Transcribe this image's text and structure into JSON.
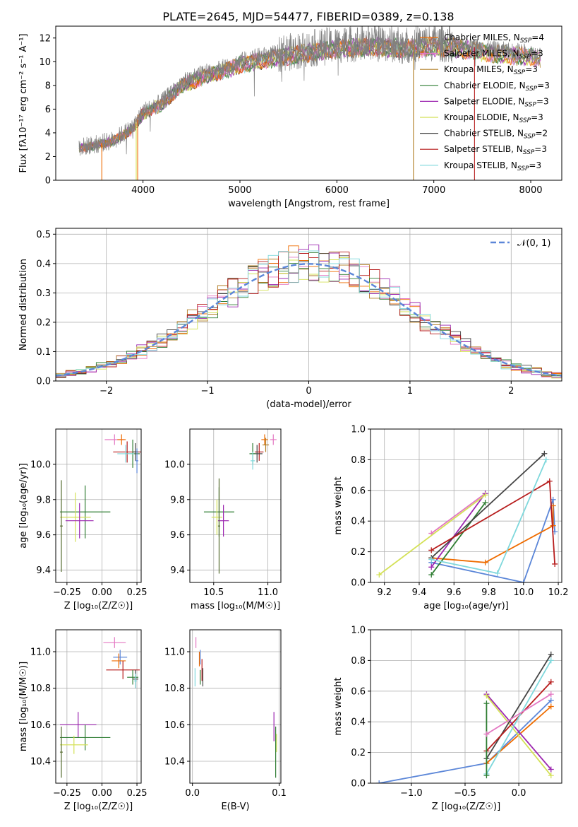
{
  "figure_title": "PLATE=2645, MJD=54477, FIBERID=0389, z=0.138",
  "legend": {
    "fit_labels": [
      {
        "lib": "Chabrier MILES",
        "n": "4",
        "color": "#ef6c00"
      },
      {
        "lib": "Salpeter MILES",
        "n": "3",
        "color": "#e377c2"
      },
      {
        "lib": "Kroupa MILES",
        "n": "3",
        "color": "#b07d24"
      },
      {
        "lib": "Chabrier ELODIE",
        "n": "3",
        "color": "#2e7d32"
      },
      {
        "lib": "Salpeter ELODIE",
        "n": "3",
        "color": "#9c27b0"
      },
      {
        "lib": "Kroupa ELODIE",
        "n": "3",
        "color": "#d4e157"
      },
      {
        "lib": "Chabrier STELIB",
        "n": "2",
        "color": "#444444"
      },
      {
        "lib": "Salpeter STELIB",
        "n": "3",
        "color": "#b71c1c"
      },
      {
        "lib": "Kroupa STELIB",
        "n": "3",
        "color": "#7fd8dc"
      }
    ],
    "nssp_prefix": "N",
    "nssp_sub": "SSP",
    "normal_label": "𝒩(0, 1)"
  },
  "chart_data": [
    {
      "id": "spectrum",
      "type": "line",
      "xlabel": "wavelength [Angstrom, rest frame]",
      "ylabel": "Flux [fλ10⁻¹⁷ erg cm⁻² s⁻¹ A⁻¹]",
      "xlim": [
        3100,
        8320
      ],
      "ylim": [
        0,
        13
      ],
      "xticks": [
        4000,
        5000,
        6000,
        7000,
        8000
      ],
      "yticks": [
        0,
        2,
        4,
        6,
        8,
        10,
        12
      ],
      "grid": false,
      "observed_color": "#808080",
      "observed_profile": {
        "x": [
          3340,
          3500,
          3700,
          3900,
          4000,
          4200,
          4400,
          4600,
          4800,
          5000,
          5200,
          5500,
          5800,
          6100,
          6400,
          6700,
          7000,
          7300,
          7600,
          7900,
          8100
        ],
        "y": [
          2.8,
          3.0,
          3.4,
          4.5,
          5.8,
          6.6,
          8.2,
          8.9,
          9.4,
          10.0,
          10.4,
          10.8,
          11.2,
          11.5,
          11.6,
          11.4,
          11.6,
          11.4,
          11.0,
          10.8,
          10.6
        ]
      }
    },
    {
      "id": "residual-histogram",
      "type": "bar",
      "xlabel": "(data-model)/error",
      "ylabel": "Normed distribution",
      "xlim": [
        -2.5,
        2.5
      ],
      "ylim": [
        0,
        0.52
      ],
      "xticks": [
        -2,
        -1,
        0,
        1,
        2
      ],
      "yticks": [
        0.0,
        0.1,
        0.2,
        0.3,
        0.4,
        0.5
      ],
      "grid": true,
      "legend_position": "top-right",
      "normal_curve_color": "#5b86d8",
      "bin_width": 0.1
    },
    {
      "id": "age-vs-metallicity",
      "type": "scatter",
      "xlabel": "Z [log₁₀(Z/Z☉)]",
      "ylabel": "age  [log₁₀(age/yr)]",
      "xlim": [
        -0.33,
        0.28
      ],
      "ylim": [
        9.33,
        10.2
      ],
      "xticks": [
        -0.25,
        0.0,
        0.25
      ],
      "yticks": [
        9.4,
        9.6,
        9.8,
        10.0
      ],
      "grid": true,
      "points": [
        {
          "color": "#e377c2",
          "x": 0.09,
          "y": 10.14,
          "xerr": 0.07,
          "yerr": 0.03
        },
        {
          "color": "#ef6c00",
          "x": 0.14,
          "y": 10.14,
          "xerr": 0.03,
          "yerr": 0.03
        },
        {
          "color": "#b71c1c",
          "x": 0.18,
          "y": 10.07,
          "xerr": 0.1,
          "yerr": 0.06
        },
        {
          "color": "#2e7d32",
          "x": 0.22,
          "y": 10.06,
          "xerr": 0.05,
          "yerr": 0.08
        },
        {
          "color": "#7fd8dc",
          "x": 0.17,
          "y": 10.06,
          "xerr": 0.06,
          "yerr": 0.05
        },
        {
          "color": "#444444",
          "x": 0.24,
          "y": 10.07,
          "xerr": 0.02,
          "yerr": 0.05
        },
        {
          "color": "#5b86d8",
          "x": 0.25,
          "y": 10.02,
          "xerr": 0.01,
          "yerr": 0.07
        },
        {
          "color": "#2e7d32",
          "x": -0.12,
          "y": 9.73,
          "xerr": 0.18,
          "yerr": 0.15
        },
        {
          "color": "#d4e157",
          "x": -0.19,
          "y": 9.7,
          "xerr": 0.11,
          "yerr": 0.14
        },
        {
          "color": "#9c27b0",
          "x": -0.16,
          "y": 9.68,
          "xerr": 0.1,
          "yerr": 0.1
        },
        {
          "color": "#556b2f",
          "x": -0.29,
          "y": 9.65,
          "xerr": 0.01,
          "yerr": 0.26
        }
      ]
    },
    {
      "id": "age-vs-mass",
      "type": "scatter",
      "xlabel": "mass [log₁₀(M/M☉)]",
      "ylabel": "",
      "xlim": [
        10.28,
        11.12
      ],
      "ylim": [
        9.33,
        10.2
      ],
      "xticks": [
        10.5,
        11.0
      ],
      "yticks": [
        9.4,
        9.6,
        9.8,
        10.0
      ],
      "grid": true,
      "points": [
        {
          "color": "#e377c2",
          "x": 11.05,
          "y": 10.14,
          "xerr": 0.03,
          "yerr": 0.03
        },
        {
          "color": "#ef6c00",
          "x": 10.97,
          "y": 10.14,
          "xerr": 0.03,
          "yerr": 0.03
        },
        {
          "color": "#b07d24",
          "x": 10.98,
          "y": 10.11,
          "xerr": 0.03,
          "yerr": 0.04
        },
        {
          "color": "#b71c1c",
          "x": 10.92,
          "y": 10.07,
          "xerr": 0.04,
          "yerr": 0.05
        },
        {
          "color": "#444444",
          "x": 10.9,
          "y": 10.06,
          "xerr": 0.05,
          "yerr": 0.05
        },
        {
          "color": "#2e7d32",
          "x": 10.86,
          "y": 10.06,
          "xerr": 0.03,
          "yerr": 0.06
        },
        {
          "color": "#7fd8dc",
          "x": 10.86,
          "y": 10.02,
          "xerr": 0.02,
          "yerr": 0.05
        },
        {
          "color": "#2e7d32",
          "x": 10.55,
          "y": 9.73,
          "xerr": 0.14,
          "yerr": 0.14
        },
        {
          "color": "#d4e157",
          "x": 10.53,
          "y": 9.7,
          "xerr": 0.05,
          "yerr": 0.1
        },
        {
          "color": "#9c27b0",
          "x": 10.59,
          "y": 9.68,
          "xerr": 0.05,
          "yerr": 0.09
        },
        {
          "color": "#556b2f",
          "x": 10.55,
          "y": 9.65,
          "xerr": 0.01,
          "yerr": 0.27
        }
      ]
    },
    {
      "id": "weight-vs-age",
      "type": "line",
      "xlabel": "age  [log₁₀(age/yr)]",
      "ylabel": "mass weight",
      "xlim": [
        9.12,
        10.22
      ],
      "ylim": [
        0,
        1
      ],
      "xticks": [
        9.2,
        9.4,
        9.6,
        9.8,
        10.0,
        10.2
      ],
      "yticks": [
        0.0,
        0.2,
        0.4,
        0.6,
        0.8,
        1.0
      ],
      "grid": true,
      "series": [
        {
          "color": "#5b86d8",
          "x": [
            9.47,
            10.0,
            10.17,
            10.18
          ],
          "y": [
            0.13,
            0.0,
            0.54,
            0.33
          ]
        },
        {
          "color": "#ef6c00",
          "x": [
            9.47,
            9.78,
            10.17,
            10.17
          ],
          "y": [
            0.16,
            0.13,
            0.37,
            0.5
          ]
        },
        {
          "color": "#e377c2",
          "x": [
            9.47,
            9.78
          ],
          "y": [
            0.32,
            0.58
          ]
        },
        {
          "color": "#9c27b0",
          "x": [
            9.47,
            9.78
          ],
          "y": [
            0.1,
            0.58
          ]
        },
        {
          "color": "#d4e157",
          "x": [
            9.17,
            9.78
          ],
          "y": [
            0.05,
            0.57
          ]
        },
        {
          "color": "#2e7d32",
          "x": [
            9.47,
            9.78
          ],
          "y": [
            0.05,
            0.52
          ]
        },
        {
          "color": "#444444",
          "x": [
            9.47,
            10.12
          ],
          "y": [
            0.16,
            0.84
          ]
        },
        {
          "color": "#b71c1c",
          "x": [
            9.47,
            10.15,
            10.18
          ],
          "y": [
            0.21,
            0.66,
            0.12
          ]
        },
        {
          "color": "#7fd8dc",
          "x": [
            9.47,
            9.85,
            10.13
          ],
          "y": [
            0.15,
            0.06,
            0.8
          ]
        }
      ]
    },
    {
      "id": "mass-vs-metallicity",
      "type": "scatter",
      "xlabel": "Z [log₁₀(Z/Z☉)]",
      "ylabel": "mass [log₁₀(M/M☉)]",
      "xlim": [
        -0.33,
        0.28
      ],
      "ylim": [
        10.28,
        11.12
      ],
      "xticks": [
        -0.25,
        0.0,
        0.25
      ],
      "yticks": [
        10.4,
        10.6,
        10.8,
        11.0
      ],
      "grid": true,
      "points": [
        {
          "color": "#e377c2",
          "x": 0.09,
          "y": 11.05,
          "xerr": 0.08,
          "yerr": 0.03
        },
        {
          "color": "#5b86d8",
          "x": 0.13,
          "y": 10.97,
          "xerr": 0.05,
          "yerr": 0.04
        },
        {
          "color": "#ef6c00",
          "x": 0.12,
          "y": 10.95,
          "xerr": 0.05,
          "yerr": 0.04
        },
        {
          "color": "#b71c1c",
          "x": 0.15,
          "y": 10.9,
          "xerr": 0.12,
          "yerr": 0.05
        },
        {
          "color": "#2e7d32",
          "x": 0.22,
          "y": 10.86,
          "xerr": 0.04,
          "yerr": 0.04
        },
        {
          "color": "#444444",
          "x": 0.24,
          "y": 10.85,
          "xerr": 0.02,
          "yerr": 0.05
        },
        {
          "color": "#7fd8dc",
          "x": 0.24,
          "y": 10.84,
          "xerr": 0.01,
          "yerr": 0.04
        },
        {
          "color": "#9c27b0",
          "x": -0.17,
          "y": 10.6,
          "xerr": 0.13,
          "yerr": 0.07
        },
        {
          "color": "#2e7d32",
          "x": -0.12,
          "y": 10.53,
          "xerr": 0.18,
          "yerr": 0.07
        },
        {
          "color": "#d4e157",
          "x": -0.2,
          "y": 10.49,
          "xerr": 0.1,
          "yerr": 0.05
        },
        {
          "color": "#556b2f",
          "x": -0.29,
          "y": 10.45,
          "xerr": 0.01,
          "yerr": 0.14
        }
      ]
    },
    {
      "id": "mass-vs-extinction",
      "type": "scatter",
      "xlabel": "E(B-V)",
      "ylabel": "",
      "xlim": [
        -0.003,
        0.102
      ],
      "ylim": [
        10.28,
        11.12
      ],
      "xticks": [
        0.0,
        0.1
      ],
      "yticks": [
        10.4,
        10.6,
        10.8,
        11.0
      ],
      "grid": true,
      "points": [
        {
          "color": "#e377c2",
          "x": 0.004,
          "y": 11.05,
          "xerr": 0,
          "yerr": 0.03
        },
        {
          "color": "#ef6c00",
          "x": 0.008,
          "y": 10.96,
          "xerr": 0,
          "yerr": 0.04
        },
        {
          "color": "#5b86d8",
          "x": 0.009,
          "y": 10.97,
          "xerr": 0,
          "yerr": 0.04
        },
        {
          "color": "#b71c1c",
          "x": 0.011,
          "y": 10.9,
          "xerr": 0,
          "yerr": 0.06
        },
        {
          "color": "#2e7d32",
          "x": 0.009,
          "y": 10.86,
          "xerr": 0,
          "yerr": 0.04
        },
        {
          "color": "#444444",
          "x": 0.012,
          "y": 10.86,
          "xerr": 0,
          "yerr": 0.05
        },
        {
          "color": "#7fd8dc",
          "x": 0.003,
          "y": 10.86,
          "xerr": 0,
          "yerr": 0.05
        },
        {
          "color": "#9c27b0",
          "x": 0.094,
          "y": 10.59,
          "xerr": 0,
          "yerr": 0.08
        },
        {
          "color": "#d4e157",
          "x": 0.097,
          "y": 10.5,
          "xerr": 0,
          "yerr": 0.05
        },
        {
          "color": "#2e7d32",
          "x": 0.096,
          "y": 10.45,
          "xerr": 0,
          "yerr": 0.14
        }
      ]
    },
    {
      "id": "weight-vs-metallicity",
      "type": "line",
      "xlabel": "Z [log₁₀(Z/Z☉)]",
      "ylabel": "mass weight",
      "xlim": [
        -1.38,
        0.4
      ],
      "ylim": [
        0,
        1
      ],
      "xticks": [
        -1.0,
        -0.5,
        0.0
      ],
      "yticks": [
        0.0,
        0.2,
        0.4,
        0.6,
        0.8,
        1.0
      ],
      "grid": true,
      "series": [
        {
          "color": "#5b86d8",
          "x": [
            -1.3,
            -0.3,
            0.3
          ],
          "y": [
            0.0,
            0.13,
            0.54
          ]
        },
        {
          "color": "#ef6c00",
          "x": [
            -0.3,
            0.3
          ],
          "y": [
            0.13,
            0.5
          ]
        },
        {
          "color": "#9c27b0",
          "x": [
            -0.3,
            0.3
          ],
          "y": [
            0.58,
            0.09
          ]
        },
        {
          "color": "#d4e157",
          "x": [
            -0.3,
            0.3
          ],
          "y": [
            0.57,
            0.05
          ]
        },
        {
          "color": "#444444",
          "x": [
            -0.3,
            0.3
          ],
          "y": [
            0.16,
            0.84
          ]
        },
        {
          "color": "#b71c1c",
          "x": [
            -0.3,
            0.3
          ],
          "y": [
            0.21,
            0.66
          ]
        },
        {
          "color": "#7fd8dc",
          "x": [
            -0.3,
            0.3
          ],
          "y": [
            0.06,
            0.8
          ]
        },
        {
          "color": "#2e7d32",
          "x": [
            -0.3,
            -0.3
          ],
          "y": [
            0.05,
            0.52
          ]
        },
        {
          "color": "#e377c2",
          "x": [
            -0.3,
            0.3
          ],
          "y": [
            0.32,
            0.58
          ]
        }
      ]
    }
  ]
}
